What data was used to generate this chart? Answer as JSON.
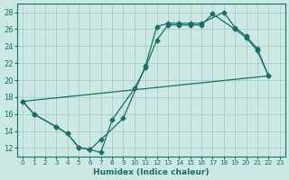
{
  "xlabel": "Humidex (Indice chaleur)",
  "bg_color": "#cce8e4",
  "grid_color": "#b0d0cc",
  "line_color": "#1a6e64",
  "xlim": [
    -0.5,
    23.5
  ],
  "ylim": [
    11,
    29
  ],
  "yticks": [
    12,
    14,
    16,
    18,
    20,
    22,
    24,
    26,
    28
  ],
  "xticks": [
    0,
    1,
    2,
    3,
    4,
    5,
    6,
    7,
    8,
    9,
    10,
    11,
    12,
    13,
    14,
    15,
    16,
    17,
    18,
    19,
    20,
    21,
    22,
    23
  ],
  "line1_x": [
    0,
    1,
    3,
    4,
    5,
    6,
    7,
    8,
    10,
    11,
    12,
    13,
    14,
    15,
    16,
    17,
    19,
    20,
    21,
    22
  ],
  "line1_y": [
    17.5,
    16.0,
    14.5,
    13.7,
    12.1,
    11.8,
    11.5,
    15.3,
    19.0,
    21.5,
    24.7,
    26.5,
    26.5,
    26.5,
    26.5,
    27.8,
    26.0,
    25.0,
    23.5,
    20.5
  ],
  "line2_x": [
    0,
    22
  ],
  "line2_y": [
    17.5,
    20.5
  ],
  "line3_x": [
    0,
    1,
    3,
    4,
    5,
    6,
    7,
    9,
    11,
    12,
    13,
    14,
    15,
    16,
    18,
    19,
    20,
    21,
    22
  ],
  "line3_y": [
    17.5,
    16.0,
    14.5,
    13.7,
    12.1,
    11.8,
    13.0,
    15.5,
    21.7,
    26.3,
    26.7,
    26.7,
    26.7,
    26.7,
    28.0,
    26.2,
    25.2,
    23.7,
    20.5
  ]
}
